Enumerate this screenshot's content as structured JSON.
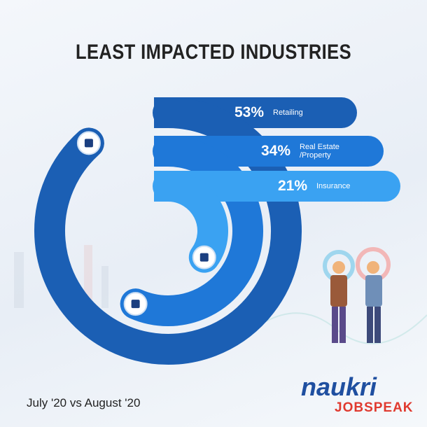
{
  "chart_data": {
    "type": "radial-bar",
    "title": "LEAST IMPACTED INDUSTRIES",
    "subtitle": "July '20 vs August '20",
    "categories": [
      "Retailing",
      "Real Estate /Property",
      "Insurance"
    ],
    "values": [
      53,
      34,
      21
    ],
    "value_labels": [
      "53%",
      "34%",
      "21%"
    ],
    "colors": [
      "#1b5fb4",
      "#1f78d8",
      "#3aa2f2"
    ]
  },
  "logo": {
    "brand": "naukri",
    "product": "JOBSPEAK"
  }
}
